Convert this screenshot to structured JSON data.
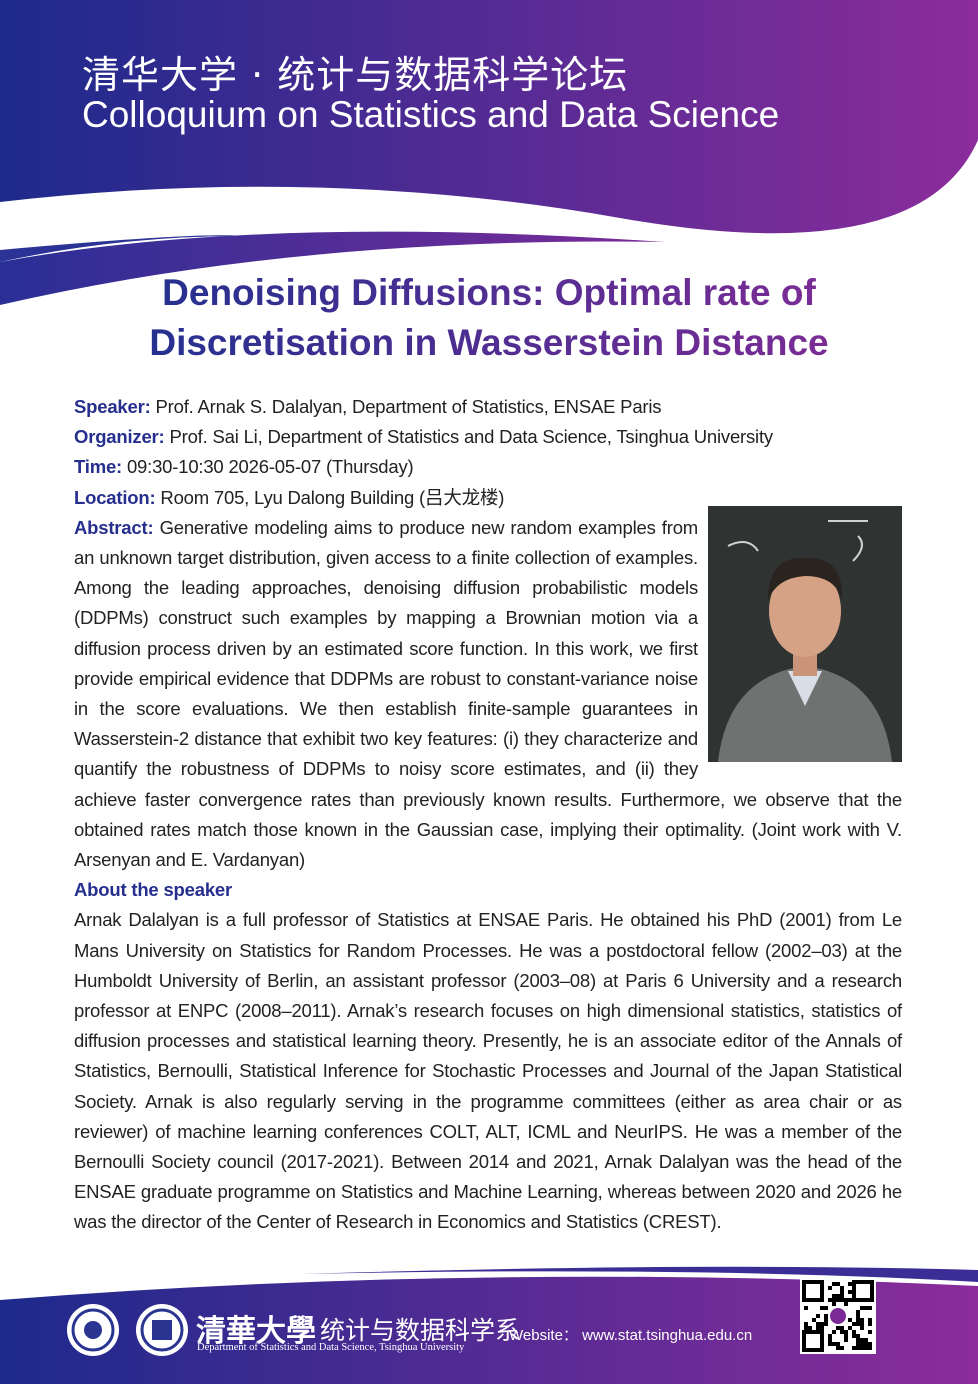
{
  "header": {
    "title_cn": "清华大学 · 统计与数据科学论坛",
    "title_en": "Colloquium on Statistics and Data Science"
  },
  "talk": {
    "title_lines": [
      "Denoising Diffusions: Optimal rate of",
      "Discretisation in Wasserstein Distance"
    ]
  },
  "details": [
    {
      "label": "Speaker:",
      "value": "Prof. Arnak S. Dalalyan, Department of Statistics, ENSAE Paris"
    },
    {
      "label": "Organizer:",
      "value": "Prof. Sai Li, Department of Statistics and Data Science, Tsinghua University"
    },
    {
      "label": "Time:",
      "value": "09:30-10:30 2026-05-07 (Thursday)"
    },
    {
      "label": "Location:",
      "value": "Room 705, Lyu Dalong Building (吕大龙楼)"
    }
  ],
  "abstract": {
    "label": "Abstract:",
    "text": "Generative modeling aims to produce new random examples from an unknown target distribution, given access to a finite collection of examples. Among the leading approaches, denoising diffusion probabilistic models (DDPMs) construct such examples by mapping a Brownian motion via a diffusion process driven by an estimated score function. In this work, we first provide empirical evidence that DDPMs are robust to constant-variance noise in the score evaluations. We then establish finite-sample guarantees in Wasserstein-2 distance that exhibit two key features: (i) they characterize and quantify the robustness of DDPMs to noisy score estimates, and (ii) they achieve faster convergence rates than previously known results. Furthermore, we observe that the obtained rates match those known in the Gaussian case, implying their optimality. (Joint work with V. Arsenyan and E. Vardanyan)"
  },
  "about": {
    "heading": "About the speaker",
    "text": "Arnak Dalalyan is a full professor of Statistics at ENSAE Paris. He obtained his PhD (2001) from Le Mans University on Statistics for Random Processes. He was a postdoctoral fellow (2002–03) at the Humboldt University of Berlin, an assistant professor (2003–08) at Paris 6 University and a research professor at ENPC (2008–2011). Arnak’s research focuses on high dimensional statistics, statistics of diffusion processes and statistical learning theory. Presently, he is an associate editor of the Annals of Statistics, Bernoulli, Statistical Inference for Stochastic Processes and Journal of the Japan Statistical Society. Arnak is also regularly serving in the programme committees (either as area chair or as reviewer) of machine learning conferences COLT, ALT, ICML and NeurIPS. He was a member of the Bernoulli Society council (2017-2021). Between 2014 and 2021, Arnak Dalalyan was the head of the ENSAE graduate programme on Statistics and Machine Learning, whereas between 2020 and 2026 he was the director of the Center of Research in Economics and Statistics (CREST)."
  },
  "footer": {
    "university": "清華大學",
    "department_cn": "统计与数据科学系",
    "department_en": "Department of Statistics and Data Science, Tsinghua University",
    "website_label": "Website：",
    "website": "www.stat.tsinghua.edu.cn"
  }
}
